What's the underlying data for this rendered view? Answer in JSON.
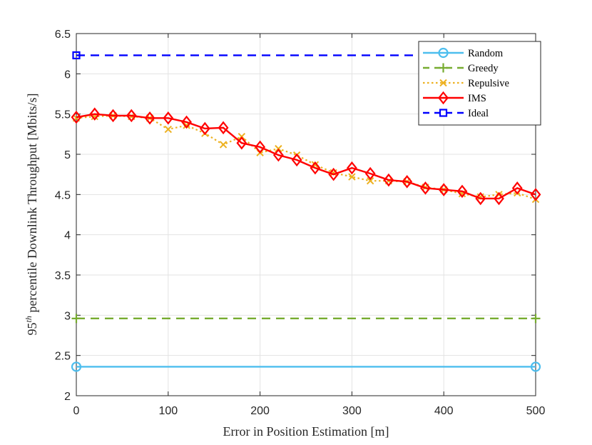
{
  "chart_data": {
    "type": "line",
    "title": "",
    "xlabel": "Error in Position Estimation [m]",
    "ylabel_prefix": "95",
    "ylabel_superscript": "th",
    "ylabel_rest": " percentile Downlink Throughput [Mbits/s]",
    "xlim": [
      0,
      500
    ],
    "ylim": [
      2,
      6.5
    ],
    "xticks": [
      "0",
      "100",
      "200",
      "300",
      "400",
      "500"
    ],
    "yticks": [
      "2",
      "2.5",
      "3",
      "3.5",
      "4",
      "4.5",
      "5",
      "5.5",
      "6",
      "6.5"
    ],
    "grid": true,
    "legend_position": "top-right",
    "series": [
      {
        "name": "Random",
        "color": "#4DBEEE",
        "style": "solid",
        "marker": "circle",
        "x": [
          0,
          500
        ],
        "y": [
          2.36,
          2.36
        ]
      },
      {
        "name": "Greedy",
        "color": "#77AC30",
        "style": "dashed",
        "marker": "plus",
        "x": [
          0,
          500
        ],
        "y": [
          2.96,
          2.96
        ]
      },
      {
        "name": "Repulsive",
        "color": "#EDB120",
        "style": "dotted",
        "marker": "x",
        "x": [
          0,
          20,
          40,
          60,
          80,
          100,
          120,
          140,
          160,
          180,
          200,
          220,
          240,
          260,
          280,
          300,
          320,
          340,
          360,
          380,
          400,
          420,
          440,
          460,
          480,
          500
        ],
        "y": [
          5.45,
          5.47,
          5.48,
          5.47,
          5.45,
          5.31,
          5.36,
          5.26,
          5.12,
          5.22,
          5.02,
          5.07,
          4.99,
          4.87,
          4.77,
          4.72,
          4.67,
          4.67,
          4.66,
          4.59,
          4.56,
          4.51,
          4.47,
          4.5,
          4.52,
          4.44
        ]
      },
      {
        "name": "IMS",
        "color": "#FF0000",
        "style": "solid",
        "marker": "diamond",
        "x": [
          0,
          20,
          40,
          60,
          80,
          100,
          120,
          140,
          160,
          180,
          200,
          220,
          240,
          260,
          280,
          300,
          320,
          340,
          360,
          380,
          400,
          420,
          440,
          460,
          480,
          500
        ],
        "y": [
          5.46,
          5.5,
          5.48,
          5.48,
          5.45,
          5.45,
          5.4,
          5.32,
          5.33,
          5.14,
          5.09,
          4.99,
          4.93,
          4.83,
          4.75,
          4.83,
          4.76,
          4.68,
          4.66,
          4.58,
          4.56,
          4.54,
          4.45,
          4.45,
          4.58,
          4.5
        ]
      },
      {
        "name": "Ideal",
        "color": "#0000FF",
        "style": "dashed",
        "marker": "square",
        "x": [
          0,
          500
        ],
        "y": [
          6.23,
          6.23
        ]
      }
    ]
  }
}
